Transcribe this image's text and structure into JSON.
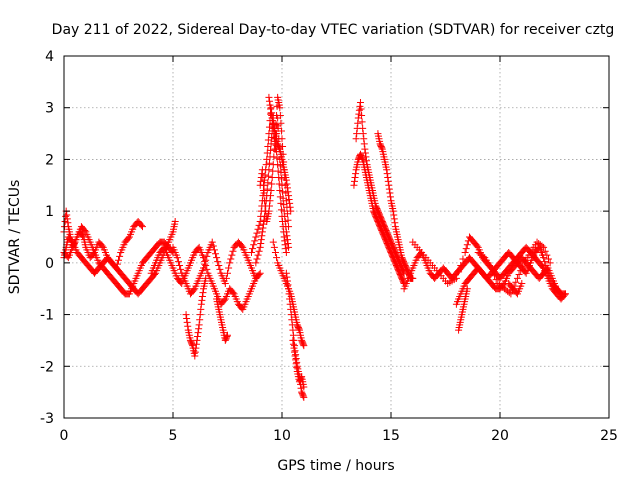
{
  "chart_data": {
    "type": "scatter",
    "title": "Day 211 of 2022, Sidereal Day-to-day VTEC variation (SDTVAR) for receiver cztg",
    "xlabel": "GPS time / hours",
    "ylabel": "SDTVAR / TECUs",
    "xlim": [
      0,
      25
    ],
    "ylim": [
      -3,
      4
    ],
    "xticks": [
      0,
      5,
      10,
      15,
      20,
      25
    ],
    "yticks": [
      -3,
      -2,
      -1,
      0,
      1,
      2,
      3,
      4
    ],
    "xtick_labels": [
      "0",
      "5",
      "10",
      "15",
      "20",
      "25"
    ],
    "ytick_labels": [
      "-3",
      "-2",
      "-1",
      "0",
      "1",
      "2",
      "3",
      "4"
    ],
    "grid": true,
    "marker": "+",
    "color": "#ff0000",
    "series": [
      {
        "name": "SDTVAR",
        "segments": [
          {
            "x": [
              0.0,
              0.1,
              0.2,
              0.3,
              0.4,
              0.5,
              0.7,
              0.9,
              1.0,
              1.2,
              1.4,
              1.6,
              1.8,
              2.0,
              2.2,
              2.4,
              2.6,
              2.8,
              3.0,
              3.2,
              3.4,
              3.6
            ],
            "y": [
              0.6,
              1.0,
              0.7,
              0.5,
              0.3,
              0.4,
              0.6,
              0.5,
              0.3,
              0.1,
              0.2,
              0.4,
              0.3,
              0.1,
              0.0,
              -0.1,
              0.2,
              0.4,
              0.5,
              0.7,
              0.8,
              0.7
            ]
          },
          {
            "x": [
              0.0,
              0.1,
              0.2,
              0.4,
              0.6,
              0.8,
              1.0,
              1.2,
              1.4,
              1.6,
              1.8,
              2.0,
              2.2,
              2.4,
              2.6,
              2.8,
              3.0,
              3.2,
              3.4,
              3.6,
              3.8,
              4.0,
              4.2,
              4.4,
              4.6,
              4.8,
              5.0,
              5.1
            ],
            "y": [
              0.1,
              0.3,
              0.5,
              0.4,
              0.2,
              0.1,
              0.0,
              -0.1,
              -0.2,
              -0.1,
              0.0,
              0.1,
              0.0,
              -0.1,
              -0.2,
              -0.3,
              -0.4,
              -0.5,
              -0.6,
              -0.5,
              -0.4,
              -0.3,
              -0.2,
              0.0,
              0.2,
              0.4,
              0.6,
              0.8
            ]
          },
          {
            "x": [
              0.0,
              0.2,
              0.4,
              0.6,
              0.8,
              1.0,
              1.2,
              1.4,
              1.6,
              1.8,
              2.0,
              2.2,
              2.4,
              2.6,
              2.8,
              3.0,
              3.2,
              3.4,
              3.6,
              3.8,
              4.0,
              4.2,
              4.4,
              4.6,
              4.8,
              5.0
            ],
            "y": [
              0.2,
              0.1,
              0.3,
              0.5,
              0.7,
              0.6,
              0.4,
              0.2,
              0.0,
              -0.1,
              -0.2,
              -0.3,
              -0.4,
              -0.5,
              -0.6,
              -0.6,
              -0.4,
              -0.2,
              0.0,
              0.1,
              0.2,
              0.3,
              0.4,
              0.4,
              0.3,
              0.2
            ]
          },
          {
            "x": [
              4.0,
              4.2,
              4.4,
              4.6,
              4.8,
              5.0,
              5.2,
              5.4,
              5.6,
              5.8,
              6.0,
              6.2,
              6.4,
              6.6,
              6.8,
              7.0,
              7.2,
              7.4,
              7.6,
              7.8,
              8.0,
              8.2,
              8.4,
              8.6,
              8.8,
              9.0
            ],
            "y": [
              -0.2,
              0.0,
              0.2,
              0.3,
              0.1,
              -0.1,
              -0.3,
              -0.4,
              -0.2,
              0.0,
              0.2,
              0.3,
              0.1,
              -0.2,
              -0.4,
              -0.6,
              -0.8,
              -0.7,
              -0.5,
              -0.6,
              -0.8,
              -0.9,
              -0.7,
              -0.5,
              -0.3,
              -0.2
            ]
          },
          {
            "x": [
              5.0,
              5.2,
              5.4,
              5.6,
              5.8,
              6.0,
              6.2,
              6.4,
              6.6,
              6.8,
              7.0,
              7.2,
              7.4,
              7.6,
              7.8,
              8.0,
              8.2,
              8.4,
              8.6,
              8.8
            ],
            "y": [
              0.3,
              0.1,
              -0.2,
              -0.4,
              -0.6,
              -0.5,
              -0.3,
              -0.1,
              0.2,
              0.4,
              0.1,
              -0.2,
              -0.4,
              0.0,
              0.3,
              0.4,
              0.3,
              0.1,
              -0.1,
              -0.3
            ]
          },
          {
            "x": [
              5.6,
              5.7,
              5.8,
              5.9,
              6.0,
              6.1,
              6.2,
              6.3,
              6.4,
              6.5
            ],
            "y": [
              -1.0,
              -1.3,
              -1.5,
              -1.6,
              -1.8,
              -1.5,
              -1.2,
              -0.8,
              -0.5,
              -0.3
            ]
          },
          {
            "x": [
              7.0,
              7.1,
              7.2,
              7.3,
              7.4,
              7.5
            ],
            "y": [
              -0.7,
              -0.9,
              -1.1,
              -1.3,
              -1.5,
              -1.4
            ]
          },
          {
            "x": [
              8.6,
              8.8,
              9.0,
              9.1,
              9.2,
              9.3,
              9.4,
              9.5,
              9.6,
              9.7,
              9.8,
              9.9,
              10.0,
              10.1,
              10.2,
              10.3
            ],
            "y": [
              0.2,
              0.5,
              0.8,
              1.2,
              1.6,
              2.0,
              2.5,
              3.0,
              2.6,
              2.2,
              2.8,
              2.0,
              1.5,
              1.0,
              0.6,
              0.3
            ]
          },
          {
            "x": [
              8.8,
              9.0,
              9.1,
              9.2,
              9.3,
              9.4,
              9.5,
              9.6,
              9.7,
              9.8,
              9.9,
              10.0,
              10.1,
              10.2
            ],
            "y": [
              0.0,
              0.3,
              0.6,
              0.9,
              1.3,
              1.8,
              2.3,
              2.8,
              2.4,
              1.9,
              1.4,
              0.9,
              0.5,
              0.2
            ]
          },
          {
            "x": [
              9.0,
              9.1,
              9.2,
              9.3,
              9.4,
              9.5,
              9.6,
              9.7,
              9.8,
              9.9,
              10.0,
              10.1,
              10.2,
              10.3
            ],
            "y": [
              1.5,
              1.8,
              1.2,
              0.8,
              1.0,
              1.4,
              1.9,
              2.5,
              3.2,
              3.0,
              2.4,
              1.8,
              1.2,
              0.7
            ]
          },
          {
            "x": [
              9.4,
              9.5,
              9.6,
              9.7,
              9.8,
              9.9,
              10.0,
              10.1,
              10.2,
              10.3,
              10.4
            ],
            "y": [
              3.2,
              2.9,
              2.7,
              2.5,
              2.3,
              2.2,
              2.0,
              1.8,
              1.6,
              1.3,
              1.0
            ]
          },
          {
            "x": [
              9.6,
              9.8,
              10.0,
              10.2,
              10.4,
              10.5,
              10.6,
              10.7,
              10.8,
              10.9,
              11.0
            ],
            "y": [
              0.4,
              0.0,
              -0.2,
              -0.4,
              -0.6,
              -0.8,
              -1.0,
              -1.2,
              -1.3,
              -1.5,
              -1.6
            ]
          },
          {
            "x": [
              10.2,
              10.3,
              10.4,
              10.5,
              10.6,
              10.7,
              10.8,
              10.9,
              11.0
            ],
            "y": [
              -0.2,
              -0.5,
              -0.9,
              -1.3,
              -1.7,
              -2.0,
              -2.2,
              -2.5,
              -2.6
            ]
          },
          {
            "x": [
              10.5,
              10.6,
              10.7,
              10.8,
              10.9,
              11.0
            ],
            "y": [
              -1.5,
              -1.8,
              -2.1,
              -2.3,
              -2.2,
              -2.4
            ]
          },
          {
            "x": [
              13.3,
              13.4,
              13.5,
              13.6,
              13.7,
              13.8,
              13.9,
              14.0,
              14.1,
              14.2,
              14.3,
              14.4,
              14.5,
              14.6,
              14.7,
              14.8,
              14.9,
              15.0,
              15.1,
              15.2,
              15.3,
              15.4,
              15.5,
              15.6
            ],
            "y": [
              1.5,
              1.8,
              2.0,
              2.1,
              2.0,
              1.8,
              1.6,
              1.4,
              1.2,
              1.0,
              0.9,
              0.8,
              0.7,
              0.6,
              0.5,
              0.4,
              0.3,
              0.2,
              0.1,
              0.0,
              -0.1,
              -0.2,
              -0.3,
              -0.4
            ]
          },
          {
            "x": [
              13.4,
              13.5,
              13.6,
              13.7,
              13.8,
              13.9,
              14.0,
              14.1,
              14.2,
              14.3,
              14.4,
              14.5,
              14.6,
              14.7,
              14.8,
              14.9,
              15.0,
              15.1,
              15.2,
              15.3,
              15.4,
              15.5,
              15.6
            ],
            "y": [
              2.4,
              2.8,
              3.1,
              2.6,
              2.2,
              1.9,
              1.7,
              1.5,
              1.3,
              1.1,
              1.0,
              0.9,
              0.8,
              0.7,
              0.6,
              0.5,
              0.4,
              0.3,
              0.2,
              0.1,
              0.0,
              -0.1,
              -0.2
            ]
          },
          {
            "x": [
              14.4,
              14.5,
              14.6,
              14.7,
              14.8,
              14.9,
              15.0,
              15.1,
              15.2,
              15.3,
              15.4,
              15.5,
              15.6,
              15.7,
              15.8,
              15.9,
              16.0
            ],
            "y": [
              2.5,
              2.3,
              2.2,
              2.0,
              1.8,
              1.5,
              1.2,
              1.0,
              0.7,
              0.5,
              0.3,
              0.1,
              0.0,
              -0.1,
              -0.2,
              -0.3,
              -0.3
            ]
          },
          {
            "x": [
              15.6,
              15.8,
              16.0,
              16.2,
              16.4,
              16.6,
              16.8,
              17.0,
              17.2,
              17.4,
              17.6,
              17.8,
              18.0,
              18.2,
              18.4,
              18.6,
              18.8,
              19.0,
              19.2,
              19.4,
              19.6,
              19.8,
              20.0,
              20.2,
              20.4,
              20.6,
              20.8,
              21.0,
              21.2,
              21.4,
              21.6,
              21.8,
              22.0,
              22.2,
              22.4,
              22.6,
              22.8,
              23.0
            ],
            "y": [
              -0.5,
              -0.3,
              -0.1,
              0.1,
              0.2,
              0.0,
              -0.2,
              -0.3,
              -0.2,
              -0.1,
              -0.2,
              -0.3,
              -0.2,
              -0.1,
              0.0,
              0.1,
              0.0,
              -0.1,
              -0.2,
              -0.3,
              -0.2,
              -0.1,
              0.0,
              0.1,
              0.2,
              0.1,
              0.0,
              -0.1,
              -0.2,
              0.0,
              0.2,
              0.3,
              0.1,
              -0.2,
              -0.4,
              -0.5,
              -0.6,
              -0.6
            ]
          },
          {
            "x": [
              16.0,
              16.4,
              16.8,
              17.2,
              17.6,
              18.0,
              18.4,
              18.6,
              18.8,
              19.0,
              19.2,
              19.4,
              19.6,
              19.8,
              20.0,
              20.2,
              20.4,
              20.6,
              20.8,
              21.0,
              21.2,
              21.4,
              21.6,
              21.8,
              22.0,
              22.2,
              22.4,
              22.6,
              22.8,
              23.0
            ],
            "y": [
              0.4,
              0.2,
              0.0,
              -0.2,
              -0.4,
              -0.3,
              0.2,
              0.5,
              0.4,
              0.3,
              0.1,
              0.0,
              -0.1,
              -0.2,
              -0.3,
              -0.2,
              -0.1,
              0.0,
              0.1,
              0.2,
              0.3,
              0.2,
              0.1,
              0.0,
              -0.1,
              -0.3,
              -0.5,
              -0.6,
              -0.7,
              -0.6
            ]
          },
          {
            "x": [
              18.0,
              18.2,
              18.4,
              18.6,
              18.8,
              19.0,
              19.2,
              19.4,
              19.6,
              19.8,
              20.0,
              20.2,
              20.4,
              20.6,
              20.8,
              21.0,
              21.2,
              21.4,
              21.6,
              21.8,
              22.0,
              22.2,
              22.4,
              22.6,
              22.8
            ],
            "y": [
              -0.8,
              -0.6,
              -0.4,
              -0.3,
              -0.2,
              -0.1,
              -0.2,
              -0.3,
              -0.4,
              -0.5,
              -0.5,
              -0.4,
              -0.2,
              -0.1,
              0.0,
              0.1,
              0.0,
              -0.1,
              -0.2,
              -0.3,
              -0.2,
              -0.1,
              -0.3,
              -0.5,
              -0.6
            ]
          },
          {
            "x": [
              18.1,
              18.2,
              18.3,
              18.4,
              18.5
            ],
            "y": [
              -1.3,
              -1.1,
              -0.9,
              -0.7,
              -0.5
            ]
          },
          {
            "x": [
              19.0,
              19.3,
              19.6,
              19.9,
              20.2,
              20.5,
              20.8,
              21.1,
              21.4,
              21.7,
              22.0,
              22.3
            ],
            "y": [
              0.2,
              0.1,
              -0.1,
              -0.4,
              -0.5,
              -0.6,
              -0.3,
              0.0,
              0.2,
              0.4,
              0.3,
              0.0
            ]
          },
          {
            "x": [
              20.4,
              20.6,
              20.8,
              21.0
            ],
            "y": [
              -0.4,
              -0.5,
              -0.6,
              -0.4
            ]
          }
        ]
      }
    ]
  }
}
